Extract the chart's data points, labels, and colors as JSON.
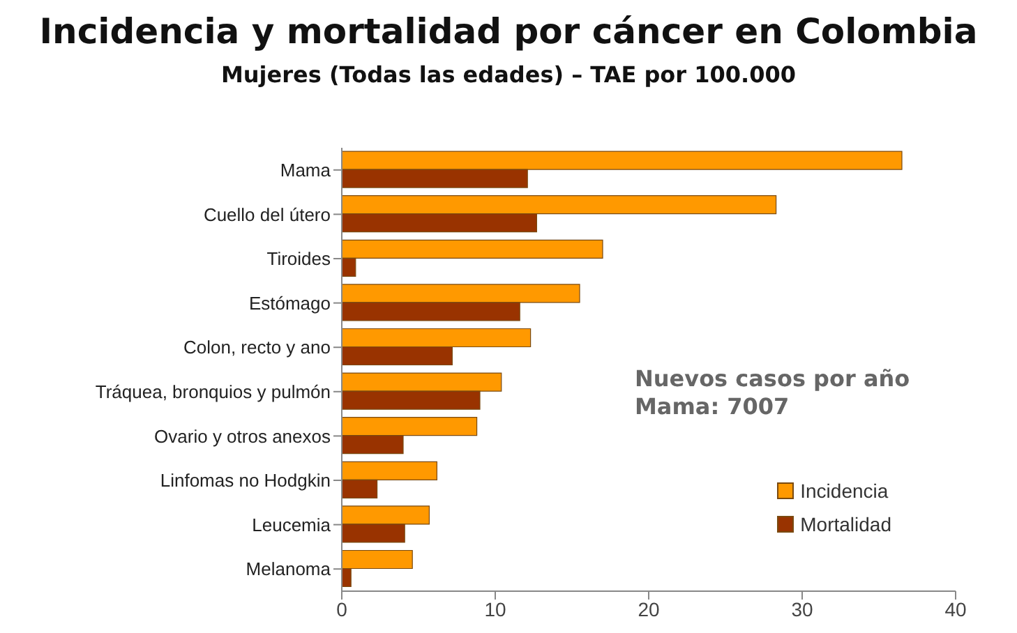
{
  "chart_data": {
    "type": "bar",
    "orientation": "horizontal",
    "title": "Incidencia y mortalidad por cáncer en Colombia",
    "subtitle": "Mujeres (Todas las edades) – TAE por 100.000",
    "categories": [
      "Mama",
      "Cuello del útero",
      "Tiroides",
      "Estómago",
      "Colon, recto y ano",
      "Tráquea, bronquios y pulmón",
      "Ovario y otros anexos",
      "Linfomas no Hodgkin",
      "Leucemia",
      "Melanoma"
    ],
    "series": [
      {
        "name": "Incidencia",
        "color": "#ff9900",
        "values": [
          36.5,
          28.3,
          17.0,
          15.5,
          12.3,
          10.4,
          8.8,
          6.2,
          5.7,
          4.6
        ]
      },
      {
        "name": "Mortalidad",
        "color": "#993300",
        "values": [
          12.1,
          12.7,
          0.9,
          11.6,
          7.2,
          9.0,
          4.0,
          2.3,
          4.1,
          0.6
        ]
      }
    ],
    "xlim": [
      0,
      40
    ],
    "xticks": [
      0,
      10,
      20,
      30,
      40
    ],
    "grid": false,
    "legend": "bottom right",
    "annotations": [
      "Nuevos casos por año\nMama: 7007"
    ]
  }
}
